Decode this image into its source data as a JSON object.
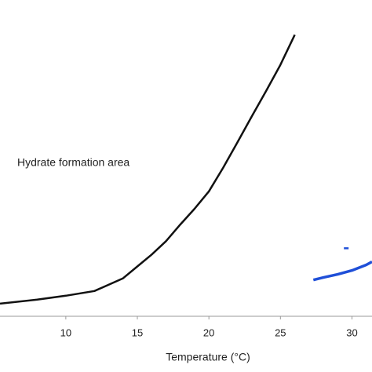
{
  "chart_data": {
    "type": "line",
    "x_label": "Temperature (°C)",
    "annotation": "Hydrate formation area",
    "xlim": [
      5.4,
      31.4
    ],
    "xticks": [
      10,
      15,
      20,
      25,
      30
    ],
    "ylim": [
      0,
      40
    ],
    "series": [
      {
        "color": "#111111",
        "marker": "none",
        "x": [
          5.4,
          8,
          10,
          12,
          14,
          15,
          16,
          17,
          18,
          19,
          20,
          21,
          22,
          23,
          24,
          25,
          26
        ],
        "values": [
          1.6,
          2.1,
          2.6,
          3.2,
          4.8,
          6.3,
          7.8,
          9.5,
          11.6,
          13.6,
          15.8,
          18.8,
          22,
          25.3,
          28.5,
          31.8,
          35.6
        ]
      },
      {
        "color": "#1f4fd8",
        "marker": "none",
        "x": [
          27.3,
          28,
          29,
          30,
          31,
          31.4
        ],
        "values": [
          4.6,
          4.9,
          5.3,
          5.8,
          6.5,
          6.9
        ]
      },
      {
        "color": "#1f4fd8",
        "marker": "dash",
        "x": [
          29.6
        ],
        "values": [
          8.6
        ]
      }
    ]
  }
}
